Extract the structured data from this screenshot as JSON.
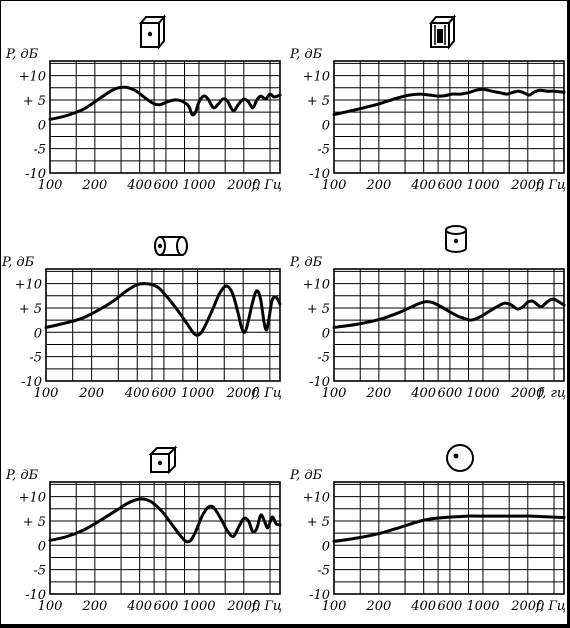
{
  "chart_data": [
    {
      "type": "line",
      "icon": "box-speaker-icon",
      "ylabel": "P, дБ",
      "xlabel": "f, Гц",
      "y_ticks": [
        "+10",
        "+ 5",
        "0",
        "-5",
        "-10"
      ],
      "x_ticks": [
        "100",
        "200",
        "400",
        "600",
        "1000",
        "2000"
      ],
      "ylim": [
        -10,
        13
      ],
      "xlim": [
        100,
        3500
      ],
      "x_scale": "log",
      "series": [
        {
          "x": [
            100,
            130,
            170,
            220,
            270,
            320,
            370,
            420,
            480,
            540,
            600,
            680,
            760,
            850,
            900,
            950,
            1000,
            1080,
            1150,
            1250,
            1350,
            1450,
            1550,
            1700,
            1850,
            2000,
            2150,
            2300,
            2450,
            2600,
            2800,
            3000,
            3200,
            3500
          ],
          "y": [
            1.0,
            1.8,
            3.2,
            5.5,
            7.2,
            7.6,
            7.0,
            5.8,
            4.5,
            4.0,
            4.5,
            5.0,
            4.8,
            3.8,
            2.0,
            2.5,
            4.6,
            5.8,
            5.2,
            3.4,
            4.2,
            5.2,
            4.8,
            2.8,
            4.2,
            5.2,
            4.6,
            3.4,
            5.0,
            5.8,
            5.2,
            6.2,
            5.6,
            6.0
          ]
        }
      ]
    },
    {
      "type": "line",
      "icon": "horn-speaker-icon",
      "ylabel": "P, дБ",
      "xlabel": "f, Гц",
      "y_ticks": [
        "+10",
        "+ 5",
        "0",
        "-5",
        "-10"
      ],
      "x_ticks": [
        "100",
        "200",
        "400",
        "600",
        "1000",
        "2000"
      ],
      "ylim": [
        -10,
        13
      ],
      "xlim": [
        100,
        3500
      ],
      "x_scale": "log",
      "series": [
        {
          "x": [
            100,
            140,
            200,
            260,
            320,
            380,
            440,
            500,
            560,
            620,
            700,
            800,
            900,
            1000,
            1150,
            1300,
            1450,
            1600,
            1750,
            1900,
            2050,
            2200,
            2400,
            2700,
            3000,
            3500
          ],
          "y": [
            2.0,
            3.0,
            4.2,
            5.3,
            6.0,
            6.2,
            6.0,
            5.8,
            5.9,
            6.2,
            6.2,
            6.5,
            7.0,
            7.2,
            6.8,
            6.5,
            6.2,
            6.6,
            6.8,
            6.4,
            6.0,
            6.6,
            7.0,
            6.8,
            6.8,
            6.6
          ]
        }
      ]
    },
    {
      "type": "line",
      "icon": "cylinder-side-icon",
      "ylabel": "P, дБ",
      "xlabel": "f, Гц",
      "y_ticks": [
        "+10",
        "+ 5",
        "0",
        "-5",
        "-10"
      ],
      "x_ticks": [
        "100",
        "200",
        "400",
        "600",
        "1000",
        "2000"
      ],
      "ylim": [
        -10,
        13
      ],
      "xlim": [
        100,
        3500
      ],
      "x_scale": "log",
      "series": [
        {
          "x": [
            100,
            130,
            170,
            220,
            280,
            340,
            400,
            450,
            500,
            560,
            640,
            740,
            850,
            950,
            1020,
            1100,
            1250,
            1400,
            1550,
            1700,
            1850,
            1950,
            2050,
            2150,
            2300,
            2450,
            2600,
            2750,
            2850,
            2950,
            3100,
            3300,
            3500
          ],
          "y": [
            1.0,
            1.8,
            2.8,
            4.5,
            6.5,
            8.5,
            9.8,
            10.0,
            9.8,
            9.0,
            7.0,
            4.5,
            1.8,
            -0.3,
            -0.5,
            0.8,
            4.5,
            8.0,
            9.5,
            8.0,
            4.0,
            1.0,
            0.0,
            2.0,
            6.0,
            8.5,
            7.0,
            2.0,
            0.5,
            2.5,
            6.5,
            7.2,
            5.8
          ]
        }
      ]
    },
    {
      "type": "line",
      "icon": "cylinder-top-icon",
      "ylabel": "P, дБ",
      "xlabel": "f, гц",
      "y_ticks": [
        "+10",
        "+ 5",
        "0",
        "-5",
        "-10"
      ],
      "x_ticks": [
        "100",
        "200",
        "400",
        "600",
        "1000",
        "2000"
      ],
      "ylim": [
        -10,
        13
      ],
      "xlim": [
        100,
        3500
      ],
      "x_scale": "log",
      "series": [
        {
          "x": [
            100,
            140,
            200,
            260,
            320,
            380,
            420,
            460,
            520,
            600,
            680,
            760,
            830,
            900,
            1000,
            1100,
            1250,
            1400,
            1550,
            1700,
            1850,
            2000,
            2150,
            2300,
            2450,
            2600,
            2800,
            3000,
            3250,
            3500
          ],
          "y": [
            1.0,
            1.6,
            2.6,
            3.8,
            5.0,
            6.0,
            6.3,
            6.1,
            5.3,
            4.2,
            3.3,
            2.8,
            2.5,
            2.8,
            3.5,
            4.3,
            5.3,
            6.0,
            5.6,
            4.8,
            5.2,
            6.2,
            6.4,
            5.8,
            5.2,
            5.8,
            6.6,
            6.8,
            6.2,
            5.6
          ]
        }
      ]
    },
    {
      "type": "line",
      "icon": "cube-speaker-icon",
      "ylabel": "P, дБ",
      "xlabel": "f, Гц",
      "y_ticks": [
        "+10",
        "+ 5",
        "0",
        "-5",
        "-10"
      ],
      "x_ticks": [
        "100",
        "200",
        "400",
        "600",
        "1000",
        "2000"
      ],
      "ylim": [
        -10,
        13
      ],
      "xlim": [
        100,
        3500
      ],
      "x_scale": "log",
      "series": [
        {
          "x": [
            100,
            130,
            170,
            220,
            280,
            340,
            400,
            450,
            500,
            570,
            650,
            750,
            820,
            880,
            950,
            1050,
            1150,
            1250,
            1400,
            1550,
            1700,
            1850,
            2000,
            2150,
            2300,
            2450,
            2600,
            2750,
            2900,
            3100,
            3300,
            3500
          ],
          "y": [
            1.0,
            1.8,
            3.2,
            5.2,
            7.2,
            8.8,
            9.5,
            9.3,
            8.5,
            6.8,
            4.5,
            2.0,
            0.8,
            1.0,
            2.8,
            6.0,
            7.8,
            7.8,
            5.5,
            3.0,
            1.8,
            3.8,
            5.5,
            5.0,
            2.8,
            3.5,
            6.2,
            5.0,
            3.6,
            5.8,
            4.4,
            4.2
          ]
        }
      ]
    },
    {
      "type": "line",
      "icon": "sphere-speaker-icon",
      "ylabel": "P, дБ",
      "xlabel": "f, Гц",
      "y_ticks": [
        "+10",
        "+ 5",
        "0",
        "-5",
        "-10"
      ],
      "x_ticks": [
        "100",
        "200",
        "400",
        "600",
        "1000",
        "2000"
      ],
      "ylim": [
        -10,
        13
      ],
      "xlim": [
        100,
        3500
      ],
      "x_scale": "log",
      "series": [
        {
          "x": [
            100,
            150,
            200,
            260,
            320,
            380,
            440,
            500,
            600,
            700,
            800,
            1000,
            1300,
            1700,
            2100,
            2500,
            3000,
            3500
          ],
          "y": [
            0.8,
            1.6,
            2.4,
            3.4,
            4.3,
            5.0,
            5.4,
            5.6,
            5.8,
            5.9,
            6.0,
            6.0,
            6.0,
            6.0,
            6.0,
            5.9,
            5.8,
            5.7
          ]
        }
      ]
    }
  ]
}
